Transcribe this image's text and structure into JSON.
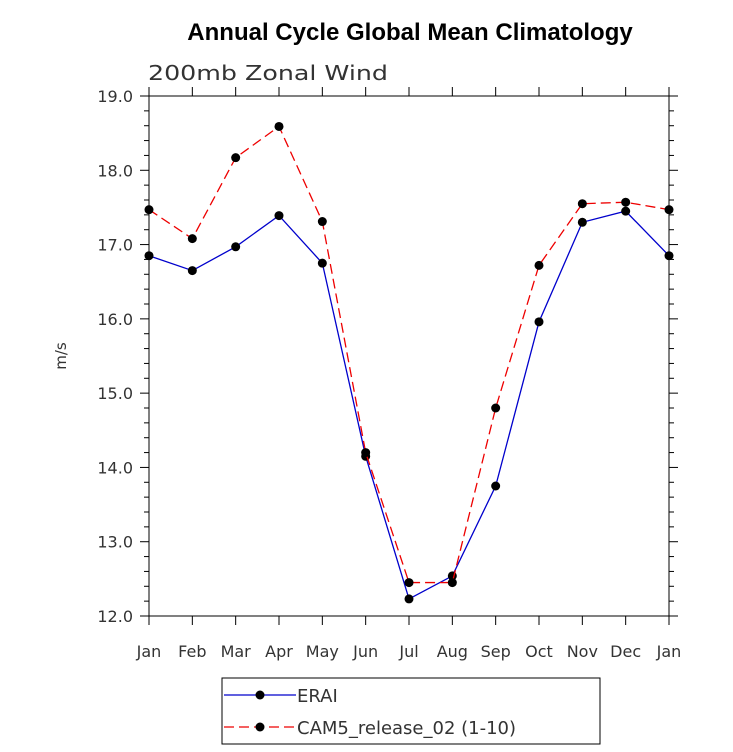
{
  "chart_data": {
    "type": "line",
    "title": "Annual Cycle Global Mean Climatology",
    "subtitle": "200mb Zonal Wind",
    "xlabel": "",
    "ylabel": "m/s",
    "categories": [
      "Jan",
      "Feb",
      "Mar",
      "Apr",
      "May",
      "Jun",
      "Jul",
      "Aug",
      "Sep",
      "Oct",
      "Nov",
      "Dec",
      "Jan"
    ],
    "ylim": [
      12.0,
      19.0
    ],
    "yticks": [
      "12.0",
      "13.0",
      "14.0",
      "15.0",
      "16.0",
      "17.0",
      "18.0",
      "19.0"
    ],
    "grid": false,
    "legend_position": "bottom",
    "series": [
      {
        "name": "ERAI",
        "color": "#0000cc",
        "style": "solid",
        "values": [
          16.85,
          16.65,
          16.97,
          17.39,
          16.75,
          14.15,
          12.23,
          12.54,
          13.75,
          15.96,
          17.3,
          17.45,
          16.85
        ]
      },
      {
        "name": "CAM5_release_02 (1-10)",
        "color": "#ee0000",
        "style": "dashed",
        "values": [
          17.47,
          17.08,
          18.17,
          18.59,
          17.31,
          14.2,
          12.45,
          12.45,
          14.8,
          16.72,
          17.55,
          17.57,
          17.47
        ]
      }
    ]
  }
}
